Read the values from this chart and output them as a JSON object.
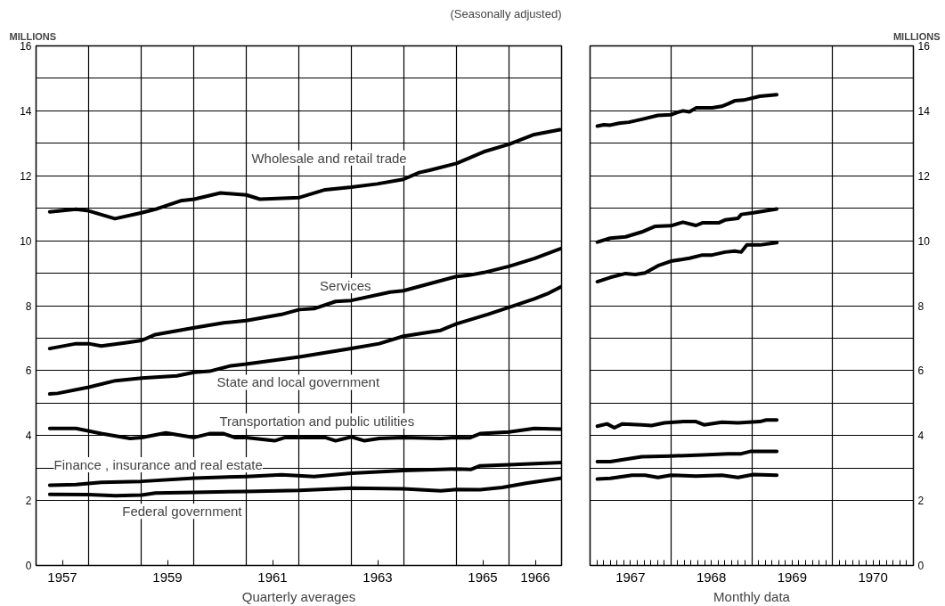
{
  "chart_data": [
    {
      "type": "line",
      "subtitle": "(Seasonally adjusted)",
      "ylabel": "MILLIONS",
      "xlabel": "Quarterly averages",
      "xlim": [
        1957,
        1967
      ],
      "ylim": [
        0,
        16
      ],
      "grid": true,
      "line_style": "solid",
      "marker": "none",
      "xticks": [
        {
          "value": 1957.5,
          "label": "1957"
        },
        {
          "value": 1959.5,
          "label": "1959"
        },
        {
          "value": 1961.5,
          "label": "1961"
        },
        {
          "value": 1963.5,
          "label": "1963"
        },
        {
          "value": 1965.5,
          "label": "1965"
        },
        {
          "value": 1966.5,
          "label": "1966"
        },
        {
          "value": 1958,
          "label": null
        },
        {
          "value": 1959,
          "label": null
        },
        {
          "value": 1960,
          "label": null
        },
        {
          "value": 1961,
          "label": null
        },
        {
          "value": 1962,
          "label": null
        },
        {
          "value": 1963,
          "label": null
        },
        {
          "value": 1964,
          "label": null
        },
        {
          "value": 1965,
          "label": null
        },
        {
          "value": 1966,
          "label": null
        }
      ],
      "yticks": [
        0,
        2,
        {
          "value": 3,
          "label": null
        },
        4,
        {
          "value": 5,
          "label": null
        },
        6,
        {
          "value": 7,
          "label": null
        },
        8,
        {
          "value": 9,
          "label": null
        },
        10,
        {
          "value": 11,
          "label": null
        },
        12,
        {
          "value": 13,
          "label": null
        },
        14,
        {
          "value": 15,
          "label": null
        },
        16
      ],
      "series": [
        {
          "name": "Wholesale and retail trade",
          "color": "#000000",
          "x": [
            1957.26,
            1957.76,
            1958.0,
            1958.5,
            1959.01,
            1959.27,
            1959.75,
            1960.01,
            1960.51,
            1961.0,
            1961.26,
            1962.01,
            1962.5,
            1963.0,
            1963.49,
            1963.99,
            1964.29,
            1964.49,
            1965.0,
            1965.52,
            1966.0,
            1966.48,
            1966.97
          ],
          "values": [
            10.89,
            10.97,
            10.92,
            10.68,
            10.86,
            10.97,
            11.23,
            11.28,
            11.47,
            11.41,
            11.28,
            11.33,
            11.57,
            11.65,
            11.75,
            11.89,
            12.1,
            12.17,
            12.38,
            12.74,
            12.97,
            13.27,
            13.42
          ]
        },
        {
          "name": "Services",
          "color": "#000000",
          "x": [
            1957.26,
            1957.76,
            1958.0,
            1958.24,
            1958.72,
            1959.01,
            1959.27,
            1960.01,
            1960.57,
            1961.0,
            1961.67,
            1962.01,
            1962.29,
            1962.7,
            1963.0,
            1963.74,
            1963.99,
            1965.0,
            1965.21,
            1965.52,
            1966.0,
            1966.48,
            1967.0
          ],
          "values": [
            6.68,
            6.83,
            6.83,
            6.76,
            6.86,
            6.93,
            7.11,
            7.32,
            7.47,
            7.54,
            7.73,
            7.88,
            7.91,
            8.13,
            8.16,
            8.42,
            8.46,
            8.9,
            8.93,
            9.02,
            9.21,
            9.45,
            9.77
          ]
        },
        {
          "name": "State and local government",
          "color": "#000000",
          "x": [
            1957.26,
            1957.41,
            1958.0,
            1958.51,
            1959.01,
            1959.68,
            1960.01,
            1960.3,
            1960.71,
            1961.0,
            1962.01,
            1963.0,
            1963.53,
            1963.99,
            1964.7,
            1965.0,
            1965.59,
            1966.0,
            1966.48,
            1966.76,
            1967.0
          ],
          "values": [
            5.28,
            5.3,
            5.49,
            5.69,
            5.77,
            5.84,
            5.95,
            5.98,
            6.15,
            6.2,
            6.42,
            6.68,
            6.83,
            7.06,
            7.24,
            7.44,
            7.73,
            7.95,
            8.21,
            8.39,
            8.59
          ]
        },
        {
          "name": "Transportation and public utilities",
          "color": "#000000",
          "x": [
            1957.26,
            1957.76,
            1958.24,
            1958.79,
            1959.01,
            1959.47,
            1960.01,
            1960.3,
            1960.57,
            1960.78,
            1961.0,
            1961.54,
            1961.74,
            1962.01,
            1962.5,
            1962.7,
            1963.0,
            1963.25,
            1963.53,
            1963.99,
            1964.7,
            1965.0,
            1965.25,
            1965.45,
            1966.0,
            1966.48,
            1967.0
          ],
          "values": [
            4.22,
            4.22,
            4.06,
            3.91,
            3.94,
            4.08,
            3.94,
            4.06,
            4.06,
            3.94,
            3.94,
            3.84,
            3.94,
            3.94,
            3.94,
            3.84,
            3.96,
            3.84,
            3.91,
            3.94,
            3.91,
            3.94,
            3.93,
            4.06,
            4.11,
            4.22,
            4.2
          ]
        },
        {
          "name": "Finance , insurance and real estate",
          "color": "#000000",
          "x": [
            1957.26,
            1957.76,
            1958.24,
            1959.01,
            1960.01,
            1961.0,
            1961.67,
            1962.29,
            1963.0,
            1963.99,
            1965.0,
            1965.28,
            1965.45,
            1966.0,
            1967.0
          ],
          "values": [
            2.47,
            2.49,
            2.56,
            2.59,
            2.69,
            2.74,
            2.79,
            2.74,
            2.84,
            2.92,
            2.97,
            2.96,
            3.07,
            3.1,
            3.17
          ]
        },
        {
          "name": "Federal government",
          "color": "#000000",
          "x": [
            1957.26,
            1958.0,
            1958.51,
            1959.01,
            1959.27,
            1960.01,
            1961.0,
            1962.01,
            1963.0,
            1963.99,
            1964.7,
            1965.0,
            1965.45,
            1965.87,
            1966.35,
            1967.0
          ],
          "values": [
            2.19,
            2.18,
            2.15,
            2.17,
            2.23,
            2.25,
            2.28,
            2.31,
            2.38,
            2.36,
            2.3,
            2.34,
            2.33,
            2.4,
            2.54,
            2.69
          ]
        }
      ]
    },
    {
      "type": "line",
      "ylabel": "MILLIONS",
      "xlabel": "Monthly data",
      "xlim": [
        1967,
        1971
      ],
      "ylim": [
        0,
        16
      ],
      "grid": true,
      "line_style": "solid",
      "marker": "none",
      "xticks": [
        {
          "value": 1967.5,
          "label": "1967"
        },
        {
          "value": 1968.5,
          "label": "1968"
        },
        {
          "value": 1969.5,
          "label": "1969"
        },
        {
          "value": 1970.5,
          "label": "1970"
        },
        {
          "value": 1968,
          "label": null
        },
        {
          "value": 1969,
          "label": null
        },
        {
          "value": 1970,
          "label": null
        },
        {
          "value": 1967.083,
          "label": null
        },
        {
          "value": 1967.167,
          "label": null
        },
        {
          "value": 1967.25,
          "label": null
        },
        {
          "value": 1967.333,
          "label": null
        },
        {
          "value": 1967.417,
          "label": null
        },
        {
          "value": 1967.583,
          "label": null
        },
        {
          "value": 1967.667,
          "label": null
        },
        {
          "value": 1967.75,
          "label": null
        },
        {
          "value": 1967.833,
          "label": null
        },
        {
          "value": 1967.917,
          "label": null
        },
        {
          "value": 1968.083,
          "label": null
        },
        {
          "value": 1968.167,
          "label": null
        },
        {
          "value": 1968.25,
          "label": null
        },
        {
          "value": 1968.333,
          "label": null
        },
        {
          "value": 1968.417,
          "label": null
        },
        {
          "value": 1968.583,
          "label": null
        },
        {
          "value": 1968.667,
          "label": null
        },
        {
          "value": 1968.75,
          "label": null
        },
        {
          "value": 1968.833,
          "label": null
        },
        {
          "value": 1968.917,
          "label": null
        },
        {
          "value": 1969.083,
          "label": null
        },
        {
          "value": 1969.167,
          "label": null
        },
        {
          "value": 1969.25,
          "label": null
        },
        {
          "value": 1969.333,
          "label": null
        },
        {
          "value": 1969.417,
          "label": null
        },
        {
          "value": 1969.583,
          "label": null
        },
        {
          "value": 1969.667,
          "label": null
        },
        {
          "value": 1969.75,
          "label": null
        },
        {
          "value": 1969.833,
          "label": null
        },
        {
          "value": 1969.917,
          "label": null
        },
        {
          "value": 1970.083,
          "label": null
        },
        {
          "value": 1970.167,
          "label": null
        },
        {
          "value": 1970.25,
          "label": null
        },
        {
          "value": 1970.333,
          "label": null
        },
        {
          "value": 1970.417,
          "label": null
        },
        {
          "value": 1970.583,
          "label": null
        },
        {
          "value": 1970.667,
          "label": null
        },
        {
          "value": 1970.75,
          "label": null
        },
        {
          "value": 1970.833,
          "label": null
        },
        {
          "value": 1970.917,
          "label": null
        }
      ],
      "yticks": [
        0,
        2,
        {
          "value": 3,
          "label": null
        },
        4,
        {
          "value": 5,
          "label": null
        },
        6,
        {
          "value": 7,
          "label": null
        },
        8,
        {
          "value": 9,
          "label": null
        },
        10,
        {
          "value": 11,
          "label": null
        },
        12,
        {
          "value": 13,
          "label": null
        },
        14,
        {
          "value": 15,
          "label": null
        },
        16
      ],
      "series": [
        {
          "color": "#000000",
          "x": [
            1967.09,
            1967.17,
            1967.25,
            1967.36,
            1967.48,
            1967.64,
            1967.84,
            1968.0,
            1968.08,
            1968.15,
            1968.23,
            1968.31,
            1968.51,
            1968.63,
            1968.71,
            1968.79,
            1968.9,
            1969.1,
            1969.31
          ],
          "values": [
            13.53,
            13.57,
            13.56,
            13.62,
            13.65,
            13.74,
            13.86,
            13.88,
            13.95,
            14.0,
            13.97,
            14.09,
            14.09,
            14.14,
            14.22,
            14.31,
            14.33,
            14.45,
            14.5
          ]
        },
        {
          "color": "#000000",
          "x": [
            1967.09,
            1967.25,
            1967.44,
            1967.64,
            1967.8,
            1968.0,
            1968.15,
            1968.31,
            1968.39,
            1968.59,
            1968.67,
            1968.83,
            1968.87,
            1969.02,
            1969.31
          ],
          "values": [
            9.96,
            10.08,
            10.12,
            10.27,
            10.44,
            10.46,
            10.57,
            10.47,
            10.55,
            10.55,
            10.64,
            10.69,
            10.81,
            10.86,
            10.98
          ]
        },
        {
          "color": "#000000",
          "x": [
            1967.09,
            1967.25,
            1967.44,
            1967.56,
            1967.68,
            1967.84,
            1968.0,
            1968.23,
            1968.39,
            1968.51,
            1968.67,
            1968.79,
            1968.87,
            1968.94,
            1969.1,
            1969.31
          ],
          "values": [
            8.74,
            8.87,
            8.99,
            8.96,
            9.01,
            9.23,
            9.37,
            9.46,
            9.56,
            9.56,
            9.65,
            9.68,
            9.65,
            9.87,
            9.87,
            9.94
          ]
        },
        {
          "color": "#000000",
          "x": [
            1967.09,
            1967.21,
            1967.3,
            1967.4,
            1967.64,
            1967.76,
            1967.92,
            1968.15,
            1968.31,
            1968.41,
            1968.63,
            1968.83,
            1969.1,
            1969.18,
            1969.31
          ],
          "values": [
            4.29,
            4.36,
            4.24,
            4.36,
            4.33,
            4.31,
            4.39,
            4.43,
            4.43,
            4.33,
            4.41,
            4.39,
            4.43,
            4.48,
            4.48
          ]
        },
        {
          "color": "#000000",
          "x": [
            1967.09,
            1967.25,
            1967.64,
            1968.0,
            1968.39,
            1968.71,
            1968.87,
            1968.98,
            1969.31
          ],
          "values": [
            3.2,
            3.2,
            3.35,
            3.37,
            3.4,
            3.44,
            3.44,
            3.51,
            3.51
          ]
        },
        {
          "color": "#000000",
          "x": [
            1967.09,
            1967.25,
            1967.52,
            1967.68,
            1967.84,
            1968.0,
            1968.31,
            1968.63,
            1968.83,
            1969.02,
            1969.31
          ],
          "values": [
            2.66,
            2.68,
            2.78,
            2.78,
            2.71,
            2.78,
            2.75,
            2.78,
            2.71,
            2.8,
            2.78
          ]
        }
      ]
    }
  ]
}
